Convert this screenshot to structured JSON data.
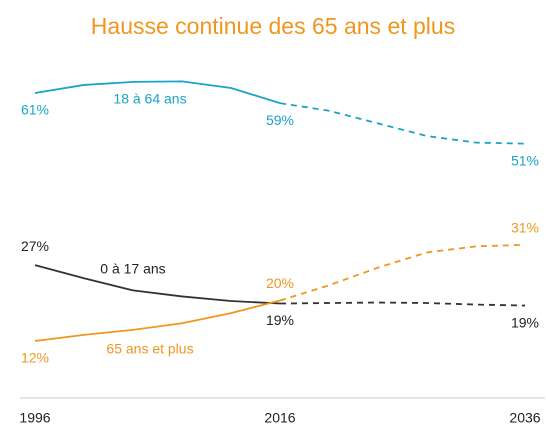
{
  "chart_data": {
    "type": "line",
    "title": "Hausse continue des 65 ans et plus",
    "x": [
      1996,
      2000,
      2004,
      2008,
      2012,
      2016,
      2020,
      2024,
      2028,
      2032,
      2036
    ],
    "xlim": [
      1996,
      2036
    ],
    "xticks": [
      1996,
      2016,
      2036
    ],
    "ylim": [
      0,
      70
    ],
    "projection_start": 2016,
    "series": [
      {
        "name": "18 à 64 ans",
        "color": "#1aa3c8",
        "values": [
          61,
          62.6,
          63.2,
          63.3,
          62,
          59,
          57.5,
          55,
          52.5,
          51.2,
          51
        ],
        "value_labels": [
          "61%",
          null,
          null,
          null,
          null,
          "59%",
          null,
          null,
          null,
          null,
          "51%"
        ]
      },
      {
        "name": "0 à 17 ans",
        "color": "#333333",
        "values": [
          27,
          24.4,
          22,
          20.8,
          19.9,
          19.4,
          19.5,
          19.6,
          19.5,
          19.2,
          19
        ],
        "value_labels": [
          "27%",
          null,
          null,
          null,
          null,
          "19%",
          null,
          null,
          null,
          null,
          "19%"
        ]
      },
      {
        "name": "65 ans et plus",
        "color": "#f0961e",
        "values": [
          12,
          13.2,
          14.2,
          15.5,
          17.5,
          20,
          23,
          26.5,
          29.5,
          30.7,
          31
        ],
        "value_labels": [
          "12%",
          null,
          null,
          null,
          null,
          "20%",
          null,
          null,
          null,
          null,
          "31%"
        ]
      }
    ]
  }
}
